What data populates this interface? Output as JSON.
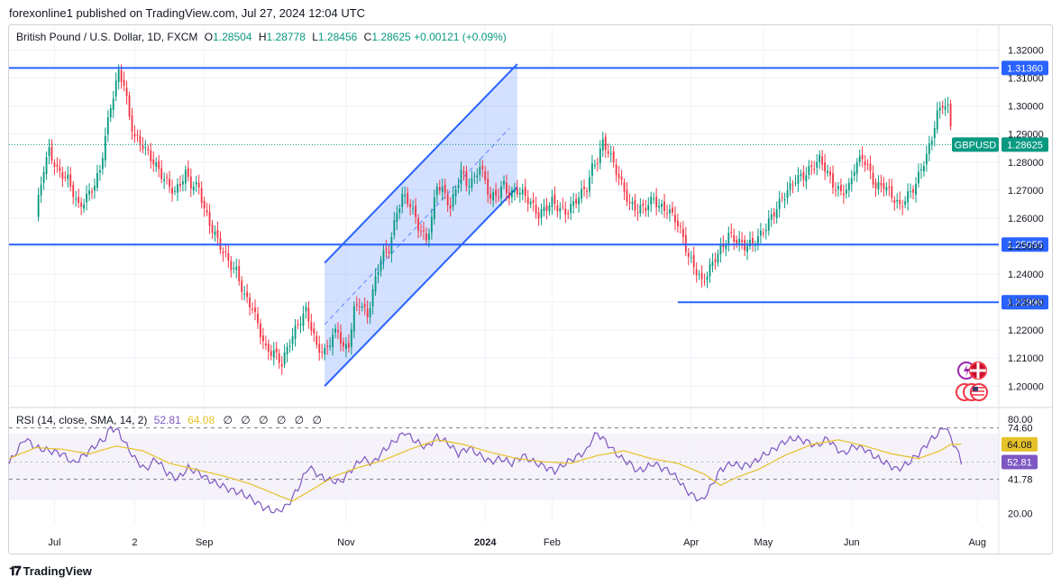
{
  "publish_line": "forexonline1 published on TradingView.com, Jul 27, 2024 12:04 UTC",
  "symbol_name": "British Pound / U.S. Dollar, 1D, FXCM",
  "ohlc": {
    "o_label": "O",
    "o": "1.28504",
    "h_label": "H",
    "h": "1.28778",
    "l_label": "L",
    "l": "1.28456",
    "c_label": "C",
    "c": "1.28625",
    "change": "+0.00121 (+0.09%)"
  },
  "rsi_legend": {
    "label": "RSI (14, close, SMA, 14, 2)",
    "rsi": "52.81",
    "sma": "64.08",
    "eyes": [
      "∅",
      "∅",
      "∅",
      "∅",
      "∅",
      "∅"
    ]
  },
  "footer": {
    "logo_text": "TradingView"
  },
  "colors": {
    "up": "#089981",
    "down": "#f23645",
    "level": "#2962ff",
    "channel": "#2962ff",
    "rsi": "#7e57c2",
    "rsi_sma": "#e6c229",
    "axis_text": "#131722"
  },
  "chart_data": [
    {
      "type": "candlestick",
      "title": "British Pound / U.S. Dollar, 1D, FXCM",
      "ylim": [
        1.193,
        1.325
      ],
      "y_ticks": [
        "1.32000",
        "1.31000",
        "1.30000",
        "1.29000",
        "1.28000",
        "1.27000",
        "1.26000",
        "1.25000",
        "1.24000",
        "1.23000",
        "1.22000",
        "1.21000",
        "1.20000"
      ],
      "x_ticks": [
        "Jul",
        "2",
        "Sep",
        "Nov",
        "2024",
        "Feb",
        "Apr",
        "May",
        "Jun",
        "Aug"
      ],
      "x_tick_days": [
        7,
        37,
        63,
        116,
        168,
        193,
        245,
        272,
        305,
        352
      ],
      "day_range": [
        -10,
        360
      ],
      "last_day": 342,
      "price_anchors": [
        [
          0,
          1.261
        ],
        [
          3,
          1.278
        ],
        [
          5,
          1.284
        ],
        [
          8,
          1.277
        ],
        [
          12,
          1.274
        ],
        [
          16,
          1.264
        ],
        [
          18,
          1.266
        ],
        [
          22,
          1.272
        ],
        [
          24,
          1.277
        ],
        [
          26,
          1.289
        ],
        [
          28,
          1.3
        ],
        [
          30,
          1.308
        ],
        [
          31,
          1.312
        ],
        [
          33,
          1.308
        ],
        [
          35,
          1.296
        ],
        [
          37,
          1.289
        ],
        [
          40,
          1.286
        ],
        [
          44,
          1.28
        ],
        [
          48,
          1.274
        ],
        [
          52,
          1.269
        ],
        [
          56,
          1.276
        ],
        [
          58,
          1.272
        ],
        [
          61,
          1.271
        ],
        [
          63,
          1.263
        ],
        [
          65,
          1.258
        ],
        [
          67,
          1.254
        ],
        [
          70,
          1.248
        ],
        [
          73,
          1.243
        ],
        [
          75,
          1.241
        ],
        [
          78,
          1.232
        ],
        [
          81,
          1.228
        ],
        [
          84,
          1.219
        ],
        [
          86,
          1.213
        ],
        [
          89,
          1.212
        ],
        [
          92,
          1.208
        ],
        [
          95,
          1.216
        ],
        [
          98,
          1.222
        ],
        [
          101,
          1.227
        ],
        [
          103,
          1.221
        ],
        [
          105,
          1.214
        ],
        [
          108,
          1.212
        ],
        [
          111,
          1.218
        ],
        [
          113,
          1.22
        ],
        [
          115,
          1.213
        ],
        [
          117,
          1.215
        ],
        [
          119,
          1.227
        ],
        [
          121,
          1.23
        ],
        [
          124,
          1.225
        ],
        [
          127,
          1.238
        ],
        [
          129,
          1.246
        ],
        [
          132,
          1.249
        ],
        [
          135,
          1.262
        ],
        [
          137,
          1.268
        ],
        [
          140,
          1.265
        ],
        [
          143,
          1.257
        ],
        [
          146,
          1.252
        ],
        [
          148,
          1.26
        ],
        [
          150,
          1.272
        ],
        [
          152,
          1.27
        ],
        [
          155,
          1.264
        ],
        [
          157,
          1.27
        ],
        [
          159,
          1.277
        ],
        [
          161,
          1.272
        ],
        [
          164,
          1.274
        ],
        [
          166,
          1.279
        ],
        [
          168,
          1.273
        ],
        [
          170,
          1.267
        ],
        [
          173,
          1.269
        ],
        [
          175,
          1.272
        ],
        [
          177,
          1.268
        ],
        [
          180,
          1.27
        ],
        [
          183,
          1.268
        ],
        [
          186,
          1.264
        ],
        [
          188,
          1.261
        ],
        [
          190,
          1.263
        ],
        [
          193,
          1.266
        ],
        [
          195,
          1.264
        ],
        [
          198,
          1.262
        ],
        [
          201,
          1.265
        ],
        [
          203,
          1.268
        ],
        [
          206,
          1.271
        ],
        [
          208,
          1.278
        ],
        [
          210,
          1.281
        ],
        [
          212,
          1.287
        ],
        [
          214,
          1.284
        ],
        [
          217,
          1.277
        ],
        [
          219,
          1.272
        ],
        [
          222,
          1.265
        ],
        [
          225,
          1.263
        ],
        [
          228,
          1.264
        ],
        [
          231,
          1.267
        ],
        [
          233,
          1.264
        ],
        [
          236,
          1.263
        ],
        [
          239,
          1.26
        ],
        [
          242,
          1.253
        ],
        [
          244,
          1.246
        ],
        [
          246,
          1.243
        ],
        [
          249,
          1.237
        ],
        [
          251,
          1.24
        ],
        [
          254,
          1.246
        ],
        [
          257,
          1.25
        ],
        [
          259,
          1.254
        ],
        [
          262,
          1.252
        ],
        [
          265,
          1.25
        ],
        [
          268,
          1.251
        ],
        [
          271,
          1.254
        ],
        [
          273,
          1.257
        ],
        [
          276,
          1.262
        ],
        [
          279,
          1.267
        ],
        [
          282,
          1.271
        ],
        [
          284,
          1.274
        ],
        [
          287,
          1.275
        ],
        [
          290,
          1.278
        ],
        [
          293,
          1.281
        ],
        [
          295,
          1.278
        ],
        [
          298,
          1.272
        ],
        [
          301,
          1.269
        ],
        [
          304,
          1.271
        ],
        [
          306,
          1.278
        ],
        [
          309,
          1.282
        ],
        [
          312,
          1.276
        ],
        [
          314,
          1.271
        ],
        [
          317,
          1.272
        ],
        [
          320,
          1.268
        ],
        [
          323,
          1.264
        ],
        [
          326,
          1.268
        ],
        [
          329,
          1.272
        ],
        [
          331,
          1.278
        ],
        [
          333,
          1.282
        ],
        [
          335,
          1.289
        ],
        [
          337,
          1.297
        ],
        [
          339,
          1.301
        ],
        [
          341,
          1.299
        ],
        [
          342,
          1.293
        ],
        [
          344,
          1.29
        ],
        [
          346,
          1.287
        ]
      ],
      "levels": [
        {
          "label": "1.31360",
          "value": 1.3136,
          "from_day": -10
        },
        {
          "label": "1.25055",
          "value": 1.25055,
          "from_day": -10
        },
        {
          "label": "1.22996",
          "value": 1.22996,
          "from_day": 240
        }
      ],
      "current_price": {
        "symbol": "GBPUSD",
        "label": "1.28625",
        "value": 1.28625
      },
      "channel": {
        "lower_start": [
          108,
          1.2
        ],
        "lower_end": [
          180,
          1.271
        ],
        "upper_start": [
          108,
          1.244
        ],
        "upper_end": [
          180,
          1.315
        ],
        "mid_start": [
          108,
          1.222
        ],
        "mid_end": [
          177,
          1.292
        ]
      }
    },
    {
      "type": "line",
      "title": "RSI (14, close, SMA, 14, 2)",
      "ylim": [
        14,
        83
      ],
      "y_ticks": [
        "80.00",
        "74.60",
        "41.78",
        "20.00"
      ],
      "band": [
        74.6,
        41.78
      ],
      "mid_line": 52.81,
      "series": [
        {
          "name": "RSI",
          "value_label": "52.81",
          "anchors": [
            [
              -10,
              52
            ],
            [
              -4,
              68
            ],
            [
              0,
              62
            ],
            [
              5,
              60
            ],
            [
              10,
              58
            ],
            [
              14,
              52
            ],
            [
              18,
              57
            ],
            [
              22,
              63
            ],
            [
              26,
              68
            ],
            [
              28,
              75
            ],
            [
              31,
              72
            ],
            [
              34,
              63
            ],
            [
              37,
              55
            ],
            [
              41,
              48
            ],
            [
              45,
              55
            ],
            [
              49,
              46
            ],
            [
              53,
              42
            ],
            [
              57,
              49
            ],
            [
              61,
              46
            ],
            [
              65,
              41
            ],
            [
              69,
              38
            ],
            [
              73,
              35
            ],
            [
              77,
              33
            ],
            [
              81,
              29
            ],
            [
              85,
              24
            ],
            [
              90,
              21
            ],
            [
              94,
              25
            ],
            [
              98,
              36
            ],
            [
              102,
              50
            ],
            [
              106,
              44
            ],
            [
              110,
              41
            ],
            [
              114,
              40
            ],
            [
              118,
              48
            ],
            [
              122,
              55
            ],
            [
              126,
              52
            ],
            [
              130,
              60
            ],
            [
              134,
              66
            ],
            [
              138,
              72
            ],
            [
              142,
              66
            ],
            [
              146,
              62
            ],
            [
              150,
              69
            ],
            [
              154,
              65
            ],
            [
              158,
              58
            ],
            [
              162,
              62
            ],
            [
              166,
              57
            ],
            [
              170,
              53
            ],
            [
              174,
              55
            ],
            [
              178,
              52
            ],
            [
              182,
              57
            ],
            [
              186,
              53
            ],
            [
              190,
              50
            ],
            [
              194,
              47
            ],
            [
              198,
              52
            ],
            [
              202,
              56
            ],
            [
              206,
              60
            ],
            [
              208,
              68
            ],
            [
              210,
              71
            ],
            [
              213,
              66
            ],
            [
              216,
              60
            ],
            [
              219,
              55
            ],
            [
              222,
              52
            ],
            [
              225,
              47
            ],
            [
              228,
              49
            ],
            [
              231,
              52
            ],
            [
              234,
              49
            ],
            [
              237,
              47
            ],
            [
              240,
              42
            ],
            [
              243,
              35
            ],
            [
              246,
              31
            ],
            [
              249,
              28
            ],
            [
              252,
              36
            ],
            [
              256,
              48
            ],
            [
              260,
              52
            ],
            [
              264,
              50
            ],
            [
              268,
              52
            ],
            [
              272,
              57
            ],
            [
              276,
              61
            ],
            [
              280,
              66
            ],
            [
              284,
              68
            ],
            [
              288,
              66
            ],
            [
              292,
              63
            ],
            [
              296,
              68
            ],
            [
              299,
              62
            ],
            [
              302,
              58
            ],
            [
              306,
              63
            ],
            [
              310,
              61
            ],
            [
              314,
              56
            ],
            [
              318,
              52
            ],
            [
              322,
              48
            ],
            [
              326,
              52
            ],
            [
              330,
              58
            ],
            [
              334,
              66
            ],
            [
              338,
              72
            ],
            [
              340,
              76
            ],
            [
              342,
              68
            ],
            [
              344,
              62
            ],
            [
              346,
              52.81
            ]
          ]
        },
        {
          "name": "RSI-based MA",
          "value_label": "64.08",
          "anchors": [
            [
              -10,
              55
            ],
            [
              0,
              62
            ],
            [
              10,
              61
            ],
            [
              20,
              58
            ],
            [
              30,
              63
            ],
            [
              40,
              60
            ],
            [
              50,
              52
            ],
            [
              60,
              48
            ],
            [
              70,
              44
            ],
            [
              80,
              39
            ],
            [
              90,
              32
            ],
            [
              96,
              28
            ],
            [
              104,
              36
            ],
            [
              112,
              44
            ],
            [
              120,
              49
            ],
            [
              130,
              54
            ],
            [
              140,
              61
            ],
            [
              150,
              67
            ],
            [
              160,
              64
            ],
            [
              170,
              59
            ],
            [
              180,
              55
            ],
            [
              190,
              53
            ],
            [
              200,
              52
            ],
            [
              210,
              57
            ],
            [
              220,
              60
            ],
            [
              230,
              55
            ],
            [
              240,
              52
            ],
            [
              250,
              45
            ],
            [
              256,
              38
            ],
            [
              262,
              43
            ],
            [
              270,
              48
            ],
            [
              280,
              57
            ],
            [
              290,
              64
            ],
            [
              300,
              67
            ],
            [
              310,
              63
            ],
            [
              320,
              58
            ],
            [
              330,
              55
            ],
            [
              338,
              60
            ],
            [
              342,
              64
            ],
            [
              346,
              64.08
            ]
          ]
        }
      ]
    }
  ]
}
